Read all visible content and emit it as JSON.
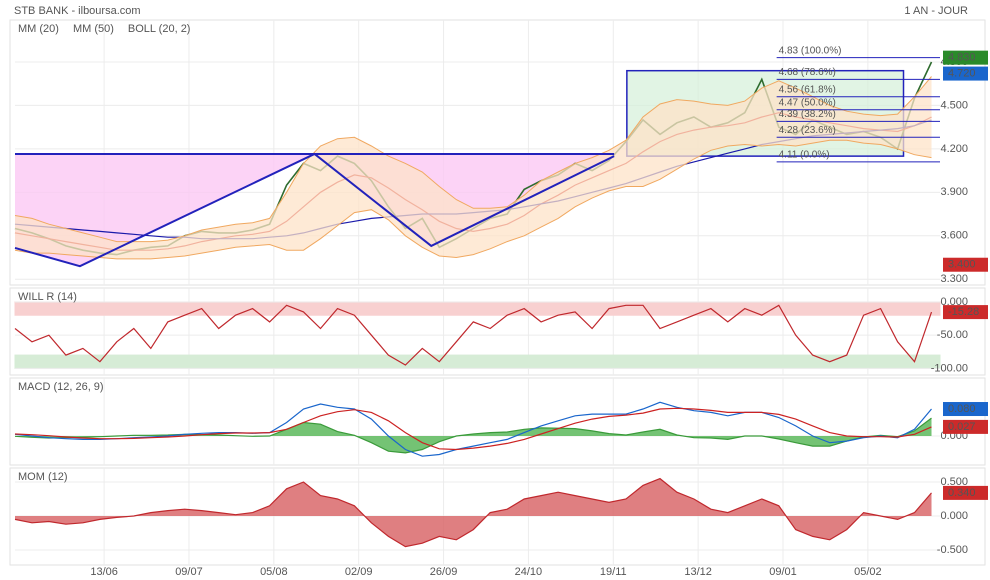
{
  "header": {
    "title": "STB BANK - ilboursa.com",
    "period": "1 AN - JOUR"
  },
  "chart_data": [
    {
      "type": "line",
      "xlim": [
        0,
        218
      ],
      "x": [
        0,
        4,
        8,
        12,
        16,
        20,
        24,
        28,
        32,
        36,
        40,
        44,
        48,
        52,
        56,
        60,
        64,
        68,
        72,
        76,
        80,
        84,
        88,
        92,
        96,
        100,
        104,
        108,
        112,
        116,
        120,
        124,
        128,
        132,
        136,
        140,
        144,
        148,
        152,
        156,
        160,
        164,
        168,
        172,
        176,
        180,
        184,
        188,
        192,
        196,
        200,
        204,
        208,
        212,
        216
      ],
      "xticks": [
        {
          "value": 21,
          "label": "13/06"
        },
        {
          "value": 41,
          "label": "09/07"
        },
        {
          "value": 61,
          "label": "05/08"
        },
        {
          "value": 81,
          "label": "02/09"
        },
        {
          "value": 101,
          "label": "26/09"
        },
        {
          "value": 121,
          "label": "24/10"
        },
        {
          "value": 141,
          "label": "19/11"
        },
        {
          "value": 161,
          "label": "13/12"
        },
        {
          "value": 181,
          "label": "09/01"
        },
        {
          "value": 201,
          "label": "05/02"
        }
      ],
      "ylim": [
        3.26,
        5.09
      ],
      "yticks": [
        {
          "value": 3.3,
          "label": "3.300"
        },
        {
          "value": 3.6,
          "label": "3.600"
        },
        {
          "value": 3.9,
          "label": "3.900"
        },
        {
          "value": 4.2,
          "label": "4.200"
        },
        {
          "value": 4.5,
          "label": "4.500"
        },
        {
          "value": 4.8,
          "label": "4.800"
        }
      ],
      "series": [
        {
          "color": "#2e6b2e",
          "values": [
            3.65,
            3.62,
            3.58,
            3.53,
            3.5,
            3.48,
            3.47,
            3.5,
            3.52,
            3.53,
            3.6,
            3.63,
            3.62,
            3.62,
            3.64,
            3.68,
            3.95,
            4.1,
            4.05,
            4.15,
            4.1,
            3.98,
            3.8,
            3.65,
            3.72,
            3.52,
            3.58,
            3.65,
            3.72,
            3.75,
            3.92,
            3.98,
            4.02,
            4.1,
            4.05,
            4.12,
            4.25,
            4.4,
            4.3,
            4.38,
            4.42,
            4.35,
            4.38,
            4.45,
            4.68,
            4.35,
            4.3,
            4.4,
            4.35,
            4.3,
            4.32,
            4.28,
            4.2,
            4.55,
            4.8
          ]
        },
        {
          "name": "MM (20)",
          "color": "#cc2222",
          "values": [
            3.62,
            3.6,
            3.58,
            3.56,
            3.54,
            3.52,
            3.5,
            3.5,
            3.5,
            3.51,
            3.53,
            3.56,
            3.58,
            3.6,
            3.61,
            3.63,
            3.7,
            3.8,
            3.9,
            3.97,
            4.02,
            4.0,
            3.93,
            3.85,
            3.78,
            3.7,
            3.65,
            3.63,
            3.65,
            3.68,
            3.74,
            3.82,
            3.88,
            3.95,
            4.0,
            4.05,
            4.1,
            4.18,
            4.25,
            4.3,
            4.33,
            4.35,
            4.36,
            4.38,
            4.42,
            4.45,
            4.42,
            4.4,
            4.38,
            4.36,
            4.34,
            4.33,
            4.32,
            4.36,
            4.42
          ]
        },
        {
          "name": "MM (50)",
          "color": "#1a1aaa",
          "values": [
            3.68,
            3.67,
            3.66,
            3.65,
            3.64,
            3.63,
            3.62,
            3.61,
            3.6,
            3.59,
            3.59,
            3.58,
            3.58,
            3.58,
            3.58,
            3.59,
            3.6,
            3.62,
            3.65,
            3.68,
            3.7,
            3.72,
            3.73,
            3.74,
            3.75,
            3.75,
            3.75,
            3.76,
            3.77,
            3.78,
            3.8,
            3.82,
            3.84,
            3.87,
            3.9,
            3.93,
            3.96,
            4.0,
            4.04,
            4.08,
            4.11,
            4.14,
            4.17,
            4.2,
            4.23,
            4.25,
            4.27,
            4.29,
            4.3,
            4.31,
            4.32,
            4.33,
            4.34,
            4.36,
            4.4
          ]
        },
        {
          "name": "BOLL (20, 2)",
          "color": "#f0a860",
          "fill": "#fde3c8",
          "upper": [
            3.74,
            3.72,
            3.68,
            3.65,
            3.62,
            3.59,
            3.56,
            3.56,
            3.56,
            3.57,
            3.6,
            3.64,
            3.66,
            3.68,
            3.69,
            3.72,
            3.9,
            4.1,
            4.22,
            4.27,
            4.28,
            4.22,
            4.15,
            4.1,
            4.04,
            3.94,
            3.85,
            3.79,
            3.79,
            3.8,
            3.88,
            3.98,
            4.04,
            4.1,
            4.14,
            4.19,
            4.26,
            4.42,
            4.51,
            4.54,
            4.53,
            4.51,
            4.5,
            4.53,
            4.62,
            4.67,
            4.62,
            4.56,
            4.5,
            4.46,
            4.44,
            4.43,
            4.44,
            4.56,
            4.7
          ],
          "lower": [
            3.5,
            3.48,
            3.48,
            3.47,
            3.46,
            3.45,
            3.44,
            3.44,
            3.44,
            3.45,
            3.46,
            3.48,
            3.5,
            3.52,
            3.53,
            3.54,
            3.5,
            3.5,
            3.58,
            3.67,
            3.76,
            3.78,
            3.71,
            3.6,
            3.52,
            3.46,
            3.45,
            3.47,
            3.51,
            3.56,
            3.6,
            3.66,
            3.72,
            3.8,
            3.86,
            3.91,
            3.94,
            3.94,
            3.99,
            4.06,
            4.13,
            4.19,
            4.22,
            4.23,
            4.22,
            4.23,
            4.22,
            4.24,
            4.26,
            4.26,
            4.24,
            4.23,
            4.2,
            4.16,
            4.14
          ]
        }
      ],
      "trend_lines": [
        {
          "color": "#2222bb",
          "points": [
            [
              0,
              3.516
            ],
            [
              15.3,
              3.39
            ],
            [
              70.6,
              4.165
            ],
            [
              98.1,
              3.53
            ],
            [
              141.2,
              4.15
            ]
          ]
        },
        {
          "color": "#2222bb",
          "points": [
            [
              0,
              4.165
            ],
            [
              141.2,
              4.165
            ]
          ]
        }
      ],
      "zone_fill": "#fbc8f4",
      "fib_box": {
        "x": [
          144.2,
          209.4
        ],
        "y": [
          4.15,
          4.74
        ],
        "color": "#2222bb",
        "fill": "#d4f0d8"
      },
      "fib_levels": {
        "x": [
          179.5,
          218
        ],
        "color": "#2222bb",
        "levels": [
          {
            "value": 4.83,
            "label": "4.83 (100.0%)"
          },
          {
            "value": 4.68,
            "label": "4.68 (78.6%)"
          },
          {
            "value": 4.56,
            "label": "4.56 (61.8%)"
          },
          {
            "value": 4.47,
            "label": "4.47 (50.0%)"
          },
          {
            "value": 4.39,
            "label": "4.39 (38.2%)"
          },
          {
            "value": 4.28,
            "label": "4.28 (23.6%)"
          },
          {
            "value": 4.11,
            "label": "4.11 (0.0%)"
          }
        ]
      },
      "badges": [
        {
          "value": 4.83,
          "label": "4.830",
          "color": "#2a8a2a"
        },
        {
          "value": 4.72,
          "label": "4.720",
          "color": "#1a66cc"
        },
        {
          "value": 3.4,
          "label": "3.400",
          "color": "#cc2a2a"
        }
      ]
    },
    {
      "type": "line",
      "title": "WILL R (14)",
      "ylim": [
        -110,
        21
      ],
      "yticks": [
        {
          "value": 0,
          "label": "0.000"
        },
        {
          "value": -50,
          "label": "-50.00"
        },
        {
          "value": -100,
          "label": "-100.00"
        }
      ],
      "zones": [
        {
          "from": 0,
          "to": -20,
          "color": "#f8d0d0"
        },
        {
          "from": -80,
          "to": -100,
          "color": "#d6ecd6"
        }
      ],
      "series": [
        {
          "color": "#c0282d",
          "values": [
            -40,
            -60,
            -50,
            -80,
            -70,
            -90,
            -60,
            -40,
            -70,
            -30,
            -20,
            -10,
            -40,
            -20,
            -10,
            -30,
            -5,
            -15,
            -40,
            -10,
            -20,
            -50,
            -80,
            -95,
            -70,
            -90,
            -60,
            -30,
            -40,
            -20,
            -10,
            -30,
            -20,
            -15,
            -40,
            -10,
            -5,
            -5,
            -40,
            -30,
            -20,
            -10,
            -30,
            -10,
            -20,
            -5,
            -50,
            -80,
            -90,
            -80,
            -20,
            -10,
            -60,
            -90,
            -15.28
          ]
        }
      ],
      "badges": [
        {
          "value": -15.28,
          "label": "-15.28",
          "color": "#cc2a2a"
        }
      ]
    },
    {
      "type": "line",
      "title": "MACD (12, 26, 9)",
      "ylim": [
        -0.086,
        0.172
      ],
      "yticks": [
        {
          "value": 0,
          "label": "0.000"
        }
      ],
      "series": [
        {
          "style": "area",
          "color": "#3a9a3a",
          "fill": "#5cb85c",
          "values": [
            -0.001,
            -0.004,
            -0.006,
            -0.005,
            -0.004,
            -0.002,
            0,
            0.002,
            0.002,
            0.003,
            0.005,
            0.004,
            0.003,
            0.001,
            -0.001,
            0,
            0.02,
            0.04,
            0.035,
            0.013,
            0.002,
            -0.02,
            -0.045,
            -0.05,
            -0.04,
            -0.017,
            0,
            0.006,
            0.01,
            0.012,
            0.02,
            0.024,
            0.023,
            0.022,
            0.015,
            0.007,
            0.003,
            0.012,
            0.02,
            0.003,
            -0.005,
            -0.006,
            -0.01,
            0,
            0,
            -0.009,
            -0.02,
            -0.03,
            -0.03,
            -0.015,
            -0.003,
            0.002,
            -0.002,
            0.015,
            0.053
          ]
        },
        {
          "color": "#1a66cc",
          "values": [
            0.005,
            0,
            -0.005,
            -0.008,
            -0.01,
            -0.01,
            -0.008,
            -0.005,
            -0.003,
            0,
            0.005,
            0.008,
            0.01,
            0.01,
            0.008,
            0.01,
            0.04,
            0.08,
            0.095,
            0.085,
            0.08,
            0.05,
            0,
            -0.04,
            -0.06,
            -0.055,
            -0.04,
            -0.03,
            -0.02,
            -0.01,
            0.01,
            0.03,
            0.045,
            0.06,
            0.065,
            0.065,
            0.065,
            0.08,
            0.1,
            0.085,
            0.075,
            0.07,
            0.06,
            0.07,
            0.07,
            0.055,
            0.03,
            0,
            -0.02,
            -0.015,
            -0.005,
            0,
            -0.005,
            0.02,
            0.08
          ]
        },
        {
          "color": "#cc2222",
          "values": [
            0.006,
            0.004,
            0.001,
            -0.003,
            -0.006,
            -0.008,
            -0.008,
            -0.007,
            -0.005,
            -0.003,
            0,
            0.004,
            0.007,
            0.009,
            0.009,
            0.01,
            0.02,
            0.04,
            0.06,
            0.072,
            0.078,
            0.07,
            0.045,
            0.01,
            -0.02,
            -0.038,
            -0.04,
            -0.036,
            -0.03,
            -0.022,
            -0.01,
            0.006,
            0.022,
            0.038,
            0.05,
            0.058,
            0.062,
            0.068,
            0.08,
            0.082,
            0.08,
            0.076,
            0.07,
            0.07,
            0.07,
            0.064,
            0.05,
            0.03,
            0.01,
            0,
            -0.002,
            -0.002,
            -0.003,
            0.005,
            0.027
          ]
        }
      ],
      "badges": [
        {
          "value": 0.08,
          "label": "0.080",
          "color": "#1a66cc"
        },
        {
          "value": 0.027,
          "label": "0.027",
          "color": "#cc2a2a"
        }
      ]
    },
    {
      "type": "line",
      "title": "MOM (12)",
      "ylim": [
        -0.72,
        0.706
      ],
      "yticks": [
        {
          "value": 0.5,
          "label": "0.500"
        },
        {
          "value": 0,
          "label": "0.000"
        },
        {
          "value": -0.5,
          "label": "-0.500"
        }
      ],
      "series": [
        {
          "style": "area",
          "color": "#c0282d",
          "fill": "#d9686b",
          "values": [
            -0.05,
            -0.1,
            -0.08,
            -0.12,
            -0.1,
            -0.05,
            -0.02,
            0,
            0.05,
            0.08,
            0.1,
            0.08,
            0.05,
            0.02,
            0.05,
            0.15,
            0.4,
            0.5,
            0.3,
            0.25,
            0.15,
            -0.1,
            -0.3,
            -0.45,
            -0.4,
            -0.3,
            -0.35,
            -0.2,
            0.05,
            0.1,
            0.25,
            0.3,
            0.35,
            0.3,
            0.25,
            0.2,
            0.25,
            0.45,
            0.55,
            0.35,
            0.25,
            0.1,
            0.05,
            0.15,
            0.25,
            0.15,
            -0.2,
            -0.3,
            -0.35,
            -0.2,
            0.05,
            0,
            -0.05,
            0.05,
            0.34
          ]
        }
      ],
      "badges": [
        {
          "value": 0.34,
          "label": "0.340",
          "color": "#cc2a2a"
        }
      ]
    }
  ]
}
